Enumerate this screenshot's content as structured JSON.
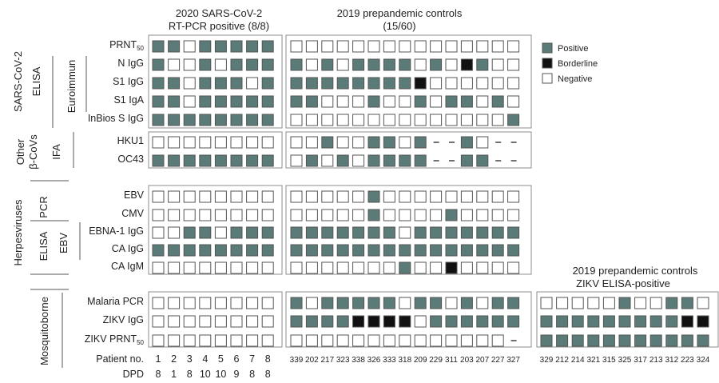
{
  "colors": {
    "positive": "#5a7b78",
    "borderline": "#111111",
    "negative": "#ffffff",
    "cell_border": "#555555",
    "panel_border": "#8c8c8c"
  },
  "legend": {
    "positive": "Positive",
    "borderline": "Borderline",
    "negative": "Negative"
  },
  "headers": {
    "g1_line1": "2020 SARS-CoV-2",
    "g1_line2": "RT-PCR positive (8/8)",
    "g2_line1": "2019 prepandemic controls",
    "g2_line2": "(15/60)",
    "g3_line1": "2019 prepandemic controls",
    "g3_line2": "ZIKV ELISA-positive"
  },
  "sections": {
    "sars": "SARS-CoV-2",
    "sars_elisa": "ELISA",
    "euroimmun": "Euroimmun",
    "other_l1": "Other",
    "other_l2": "β-CoVs",
    "ifa": "IFA",
    "herpes": "Herpesviruses",
    "pcr": "PCR",
    "herpes_elisa": "ELISA",
    "ebv": "EBV",
    "mosquito": "Mosquitoborne"
  },
  "rows": {
    "prnt": {
      "base": "PRNT",
      "sub": "50"
    },
    "n_igg": "N IgG",
    "s1_igg": "S1 IgG",
    "s1_iga": "S1 IgA",
    "inbios": "InBios S IgG",
    "hku1": "HKU1",
    "oc43": "OC43",
    "ebv": "EBV",
    "cmv": "CMV",
    "ebna": "EBNA-1 IgG",
    "ca_igg": "CA IgG",
    "ca_igm": "CA IgM",
    "malaria": "Malaria PCR",
    "zikv_igg": "ZIKV IgG",
    "zikv_prnt": {
      "base": "ZIKV PRNT",
      "sub": "50"
    }
  },
  "footer": {
    "patient_label": "Patient no.",
    "dpd_label": "DPD",
    "g1_patients": [
      "1",
      "2",
      "3",
      "4",
      "5",
      "6",
      "7",
      "8"
    ],
    "g1_dpd": [
      "8",
      "1",
      "8",
      "10",
      "10",
      "9",
      "8",
      "8"
    ],
    "g2_patients": [
      "339",
      "202",
      "217",
      "323",
      "338",
      "326",
      "333",
      "318",
      "209",
      "229",
      "311",
      "203",
      "207",
      "227",
      "327"
    ],
    "g3_patients": [
      "329",
      "212",
      "214",
      "321",
      "315",
      "325",
      "317",
      "213",
      "312",
      "223",
      "324"
    ]
  },
  "grid": {
    "legend_key": "P = positive, B = borderline, N = negative, - = not tested",
    "group1": {
      "prnt": "PPNPPPPP",
      "n_igg": "PNNPNPPP",
      "s1_igg": "PPNPPPNP",
      "s1_iga": "PPNPPPPP",
      "inbios": "PPPPPPPP",
      "hku1": "NNNNNNNN",
      "oc43": "PPPPPPPP",
      "ebv": "NNNNNNNN",
      "cmv": "NNNNNNNN",
      "ebna": "NNPPNPPP",
      "ca_igg": "PPPPPPPP",
      "ca_igm": "NNNNNNNN",
      "malaria": "NNNNNNNN",
      "zikv_igg": "NNNNNNNN",
      "zikv_prnt": "NNNNNNNN"
    },
    "group2": {
      "prnt": "NNNNNNNNNNNNNNN",
      "n_igg": "PNPNPPPPNPNBPNN",
      "s1_igg": "PPPPPPPPBNNNNNN",
      "s1_iga": "PPNNNPNNPNPPNPN",
      "inbios": "NNNNNNNNNNNNNNP",
      "hku1": "NNPNNPPNP--PN--",
      "oc43": "NPNPNPPPP--PP--",
      "ebv": "NNNNNPNNNNNNNNN",
      "cmv": "NNNNNPNNNNPNNNN",
      "ebna": "PPPPPPPNPPPPPPP",
      "ca_igg": "PPPPPPPPPPPPPPP",
      "ca_igm": "NNNNNNNPNNBNNNN",
      "malaria": "PNPPPPPNPPNPNPP",
      "zikv_igg": "PPPPBBBBNPPPPPP",
      "zikv_prnt": "NNNNNNNNNNNNNN-"
    },
    "group3": {
      "malaria": "NNNNNPNNPPN",
      "zikv_igg": "PPPPPPPPPBB",
      "zikv_prnt": "PPPPPPPPPPP"
    }
  }
}
